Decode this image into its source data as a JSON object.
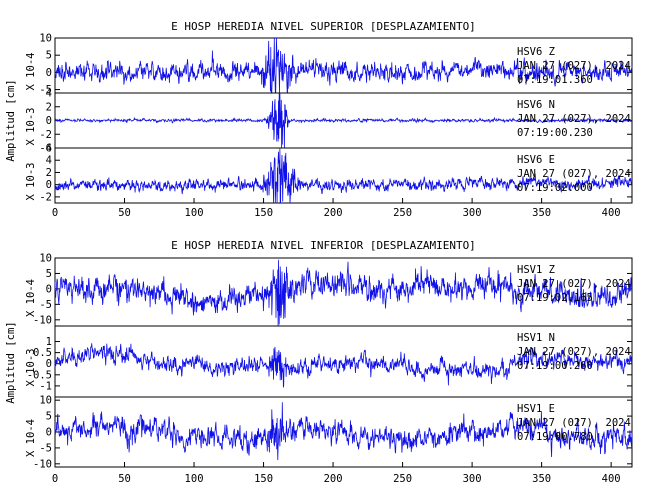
{
  "chart_data": [
    {
      "type": "line",
      "title": "E HOSP HEREDIA NIVEL SUPERIOR [DESPLAZAMIENTO]",
      "ylabel": "Amplitud [cm]",
      "xlim": [
        0,
        415
      ],
      "x_ticks": [
        "0",
        "50",
        "100",
        "150",
        "200",
        "250",
        "300",
        "350",
        "400"
      ],
      "panels": [
        {
          "channel": "HSV6 Z",
          "station": "HSV6",
          "component": "Z",
          "date": "JAN 27 (027), 2024",
          "time": "07:19:01.360",
          "scale": "X 10-4",
          "ylim": [
            -6,
            10
          ],
          "y_ticks": [
            "10",
            "5",
            "0",
            "-5"
          ],
          "trace": {
            "base_amplitude": 2.6,
            "burst_amplitude": 5.5,
            "burst_center": 160,
            "burst_width": 9,
            "drift": 0.6,
            "seed": 11
          }
        },
        {
          "channel": "HSV6 N",
          "station": "HSV6",
          "component": "N",
          "date": "JAN 27 (027), 2024",
          "time": "07:19:00.230",
          "scale": "X 10-3",
          "ylim": [
            -4,
            4
          ],
          "y_ticks": [
            "4",
            "2",
            "0",
            "-2",
            "-4"
          ],
          "trace": {
            "base_amplitude": 0.2,
            "burst_amplitude": 3.6,
            "burst_center": 161,
            "burst_width": 5,
            "drift": 0.0,
            "seed": 23
          }
        },
        {
          "channel": "HSV6 E",
          "station": "HSV6",
          "component": "E",
          "date": "JAN 27 (027), 2024",
          "time": "07:19:02.000",
          "scale": "X 10-3",
          "ylim": [
            -3,
            6
          ],
          "y_ticks": [
            "6",
            "4",
            "2",
            "0",
            "-2"
          ],
          "trace": {
            "base_amplitude": 0.9,
            "burst_amplitude": 3.3,
            "burst_center": 163,
            "burst_width": 10,
            "drift": 0.2,
            "seed": 37
          }
        }
      ]
    },
    {
      "type": "line",
      "title": "E HOSP HEREDIA NIVEL INFERIOR [DESPLAZAMIENTO]",
      "ylabel": "Amplitud [cm]",
      "xlim": [
        0,
        415
      ],
      "x_ticks": [
        "0",
        "50",
        "100",
        "150",
        "200",
        "250",
        "300",
        "350",
        "400"
      ],
      "panels": [
        {
          "channel": "HSV1 Z",
          "station": "HSV1",
          "component": "Z",
          "date": "JAN 27 (027), 2024",
          "time": "07:19:02.165",
          "scale": "X 10-4",
          "ylim": [
            -12,
            10
          ],
          "y_ticks": [
            "10",
            "5",
            "0",
            "-5",
            "-10"
          ],
          "trace": {
            "base_amplitude": 4.0,
            "burst_amplitude": 5.0,
            "burst_center": 162,
            "burst_width": 8,
            "drift": 2.5,
            "seed": 51
          }
        },
        {
          "channel": "HSV1 N",
          "station": "HSV1",
          "component": "N",
          "date": "JAN 27 (027), 2024",
          "time": "07:19:00.260",
          "scale": "X 10-3",
          "ylim": [
            -1.5,
            1.7
          ],
          "y_ticks": [
            "1",
            "0.5",
            "0",
            "-0.5",
            "-1"
          ],
          "trace": {
            "base_amplitude": 0.35,
            "burst_amplitude": 0.45,
            "burst_center": 160,
            "burst_width": 6,
            "drift": 0.25,
            "seed": 67
          }
        },
        {
          "channel": "HSV1 E",
          "station": "HSV1",
          "component": "E",
          "date": "JAN 27 (027), 2024",
          "time": "07:19:00.780",
          "scale": "X 10-4",
          "ylim": [
            -11,
            11
          ],
          "y_ticks": [
            "10",
            "5",
            "0",
            "-5",
            "-10"
          ],
          "trace": {
            "base_amplitude": 3.4,
            "burst_amplitude": 3.5,
            "burst_center": 160,
            "burst_width": 7,
            "drift": 1.8,
            "seed": 83
          }
        }
      ]
    }
  ]
}
